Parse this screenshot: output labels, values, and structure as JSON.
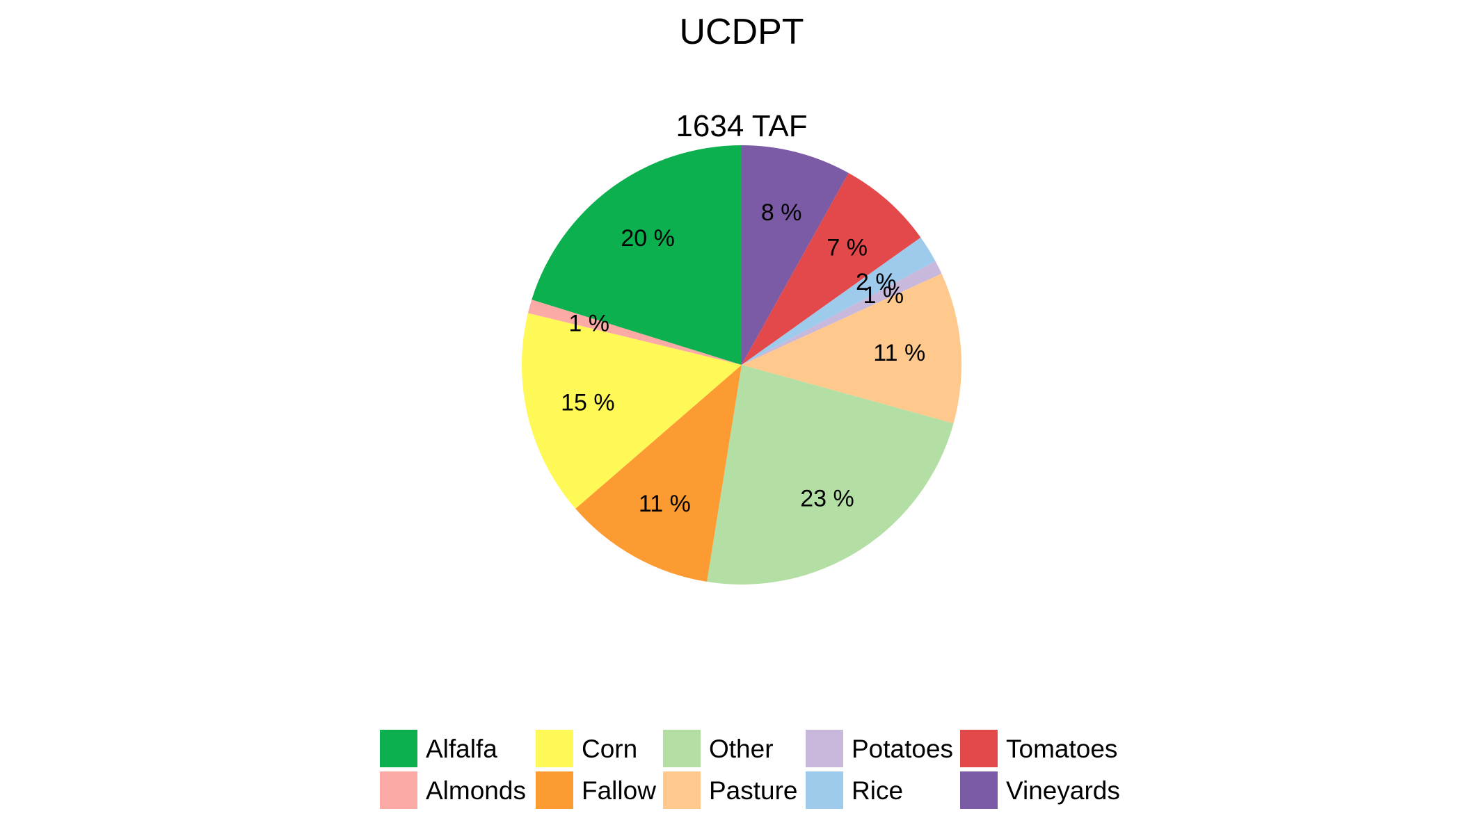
{
  "chart_data": {
    "type": "pie",
    "title": "UCDPT",
    "subtitle": "1634 TAF",
    "slices": [
      {
        "name": "Vineyards",
        "value": 8,
        "label": "8 %",
        "color": "#7b5aa6"
      },
      {
        "name": "Tomatoes",
        "value": 7,
        "label": "7 %",
        "color": "#e3484a"
      },
      {
        "name": "Rice",
        "value": 2,
        "label": "2 %",
        "color": "#9ecbec"
      },
      {
        "name": "Potatoes",
        "value": 1,
        "label": "1 %",
        "color": "#c7b8dc"
      },
      {
        "name": "Pasture",
        "value": 11,
        "label": "11 %",
        "color": "#ffc98d"
      },
      {
        "name": "Other",
        "value": 23,
        "label": "23 %",
        "color": "#b3dea4"
      },
      {
        "name": "Fallow",
        "value": 11,
        "label": "11 %",
        "color": "#fd9b33"
      },
      {
        "name": "Corn",
        "value": 15,
        "label": "15 %",
        "color": "#fff957"
      },
      {
        "name": "Almonds",
        "value": 1,
        "label": "1 %",
        "color": "#fcaaa5"
      },
      {
        "name": "Alfalfa",
        "value": 20,
        "label": "20 %",
        "color": "#0cb04e"
      }
    ],
    "legend": {
      "placement": "bottom",
      "items": [
        {
          "name": "Alfalfa",
          "color": "#0cb04e"
        },
        {
          "name": "Almonds",
          "color": "#fcaaa5"
        },
        {
          "name": "Corn",
          "color": "#fff957"
        },
        {
          "name": "Fallow",
          "color": "#fd9b33"
        },
        {
          "name": "Other",
          "color": "#b3dea4"
        },
        {
          "name": "Pasture",
          "color": "#ffc98d"
        },
        {
          "name": "Potatoes",
          "color": "#c7b8dc"
        },
        {
          "name": "Rice",
          "color": "#9ecbec"
        },
        {
          "name": "Tomatoes",
          "color": "#e3484a"
        },
        {
          "name": "Vineyards",
          "color": "#7b5aa6"
        }
      ]
    }
  }
}
